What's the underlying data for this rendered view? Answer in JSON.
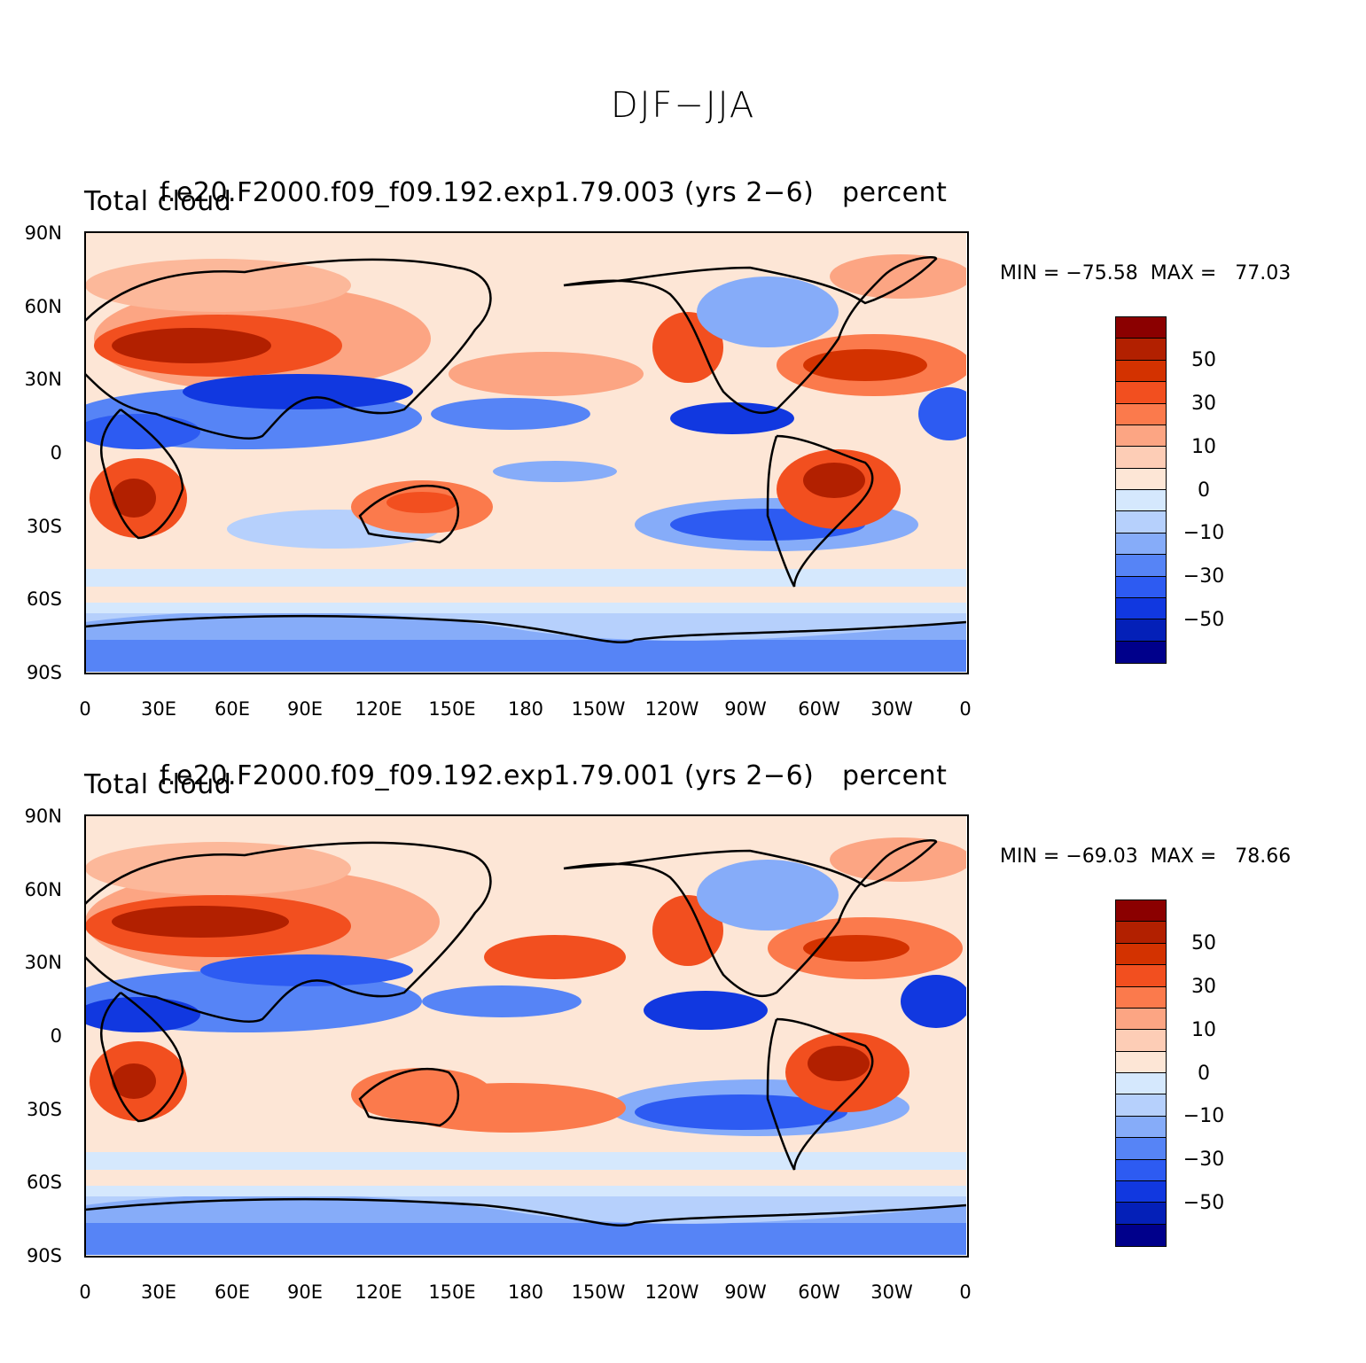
{
  "title": "DJF−JJA",
  "panels": [
    {
      "left_title": "Total cloud",
      "center_title": "f.e20.F2000.f09_f09.192.exp1.79.003 (yrs 2−6)",
      "right_title": "percent",
      "min_label": "MIN = −75.58",
      "max_label": "MAX =   77.03"
    },
    {
      "left_title": "Total cloud",
      "center_title": "f.e20.F2000.f09_f09.192.exp1.79.001 (yrs 2−6)",
      "right_title": "percent",
      "min_label": "MIN = −69.03",
      "max_label": "MAX =   78.66"
    }
  ],
  "y_ticks": [
    "90N",
    "60N",
    "30N",
    "0",
    "30S",
    "60S",
    "90S"
  ],
  "x_ticks": [
    "0",
    "30E",
    "60E",
    "90E",
    "120E",
    "150E",
    "180",
    "150W",
    "120W",
    "90W",
    "60W",
    "30W",
    "0"
  ],
  "colorbar": {
    "colors": [
      "#8b0000",
      "#b22000",
      "#d33200",
      "#f24f1f",
      "#fb7a4c",
      "#fca583",
      "#fdcdb6",
      "#fde6d6",
      "#d5e8fd",
      "#b6d0fc",
      "#86acf9",
      "#5684f6",
      "#2d5bf2",
      "#1138e0",
      "#0420b8",
      "#00008b"
    ],
    "labels": [
      "50",
      "30",
      "10",
      "0",
      "−10",
      "−30",
      "−50"
    ]
  }
}
